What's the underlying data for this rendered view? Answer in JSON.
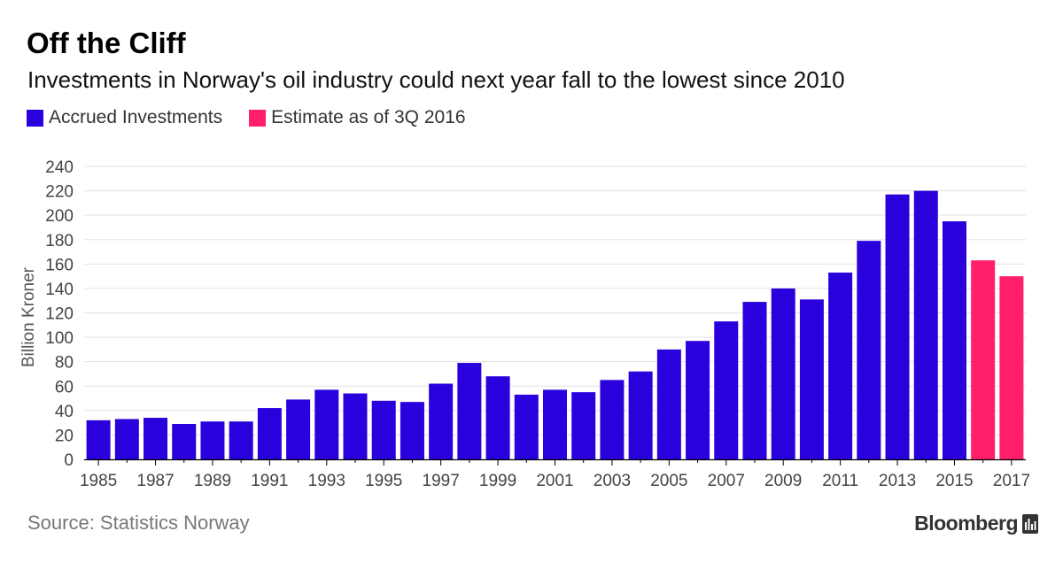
{
  "title": "Off the Cliff",
  "subtitle": "Investments in Norway's oil industry could next year fall to the lowest since 2010",
  "source": "Source: Statistics Norway",
  "brand": "Bloomberg",
  "colors": {
    "accrued": "#2a00dc",
    "estimate": "#ff1f6b",
    "grid": "#e3e3e3",
    "axis": "#000000",
    "tick_text": "#444444"
  },
  "chart_data": {
    "type": "bar",
    "title": "Off the Cliff",
    "xlabel": "",
    "ylabel": "Billion Kroner",
    "ylim": [
      0,
      240
    ],
    "y_ticks": [
      0,
      20,
      40,
      60,
      80,
      100,
      120,
      140,
      160,
      180,
      200,
      220,
      240
    ],
    "x_tick_labels": [
      "1985",
      "1987",
      "1989",
      "1991",
      "1993",
      "1995",
      "1997",
      "1999",
      "2001",
      "2003",
      "2005",
      "2007",
      "2009",
      "2011",
      "2013",
      "2015",
      "2017"
    ],
    "grid": true,
    "legend_position": "top-left",
    "categories": [
      1985,
      1986,
      1987,
      1988,
      1989,
      1990,
      1991,
      1992,
      1993,
      1994,
      1995,
      1996,
      1997,
      1998,
      1999,
      2000,
      2001,
      2002,
      2003,
      2004,
      2005,
      2006,
      2007,
      2008,
      2009,
      2010,
      2011,
      2012,
      2013,
      2014,
      2015,
      2016,
      2017
    ],
    "series": [
      {
        "name": "Accrued Investments",
        "color": "#2a00dc",
        "values": [
          32,
          33,
          34,
          29,
          31,
          31,
          42,
          49,
          57,
          54,
          48,
          47,
          62,
          79,
          68,
          53,
          57,
          55,
          65,
          72,
          90,
          97,
          113,
          129,
          140,
          131,
          153,
          179,
          217,
          220,
          195,
          null,
          null
        ]
      },
      {
        "name": "Estimate as of 3Q 2016",
        "color": "#ff1f6b",
        "values": [
          null,
          null,
          null,
          null,
          null,
          null,
          null,
          null,
          null,
          null,
          null,
          null,
          null,
          null,
          null,
          null,
          null,
          null,
          null,
          null,
          null,
          null,
          null,
          null,
          null,
          null,
          null,
          null,
          null,
          null,
          null,
          163,
          150
        ]
      }
    ]
  }
}
